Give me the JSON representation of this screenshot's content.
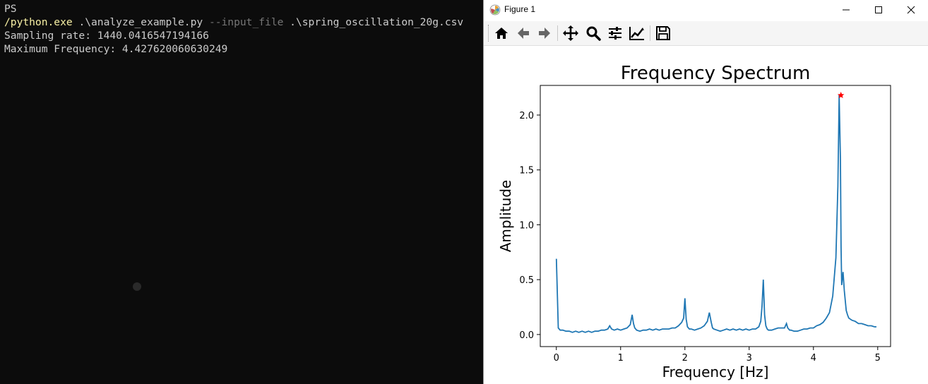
{
  "terminal": {
    "prompt": "PS",
    "command_exe": "/python.exe",
    "command_script": " .\\analyze_example.py ",
    "command_flag": "--input_file",
    "command_file": " .\\spring_oscillation_20g.csv",
    "output_lines": [
      "Sampling rate: 1440.0416547194166",
      "Maximum Frequency: 4.427620060630249"
    ]
  },
  "window": {
    "title": "Figure 1",
    "app_icon": "matplotlib-icon",
    "buttons": [
      "minimize-icon",
      "maximize-icon",
      "close-icon"
    ]
  },
  "toolbar": {
    "tools": [
      "home-icon",
      "back-arrow-icon",
      "forward-arrow-icon",
      "pan-icon",
      "zoom-icon",
      "subplots-config-icon",
      "edit-axis-icon",
      "save-icon"
    ]
  },
  "chart_data": {
    "type": "line",
    "title": "Frequency Spectrum",
    "xlabel": "Frequency [Hz]",
    "ylabel": "Amplitude",
    "xlim": [
      -0.25,
      5.2
    ],
    "ylim": [
      -0.11,
      2.27
    ],
    "xticks": [
      0,
      1,
      2,
      3,
      4,
      5
    ],
    "xtick_labels": [
      "0",
      "1",
      "2",
      "3",
      "4",
      "5"
    ],
    "yticks": [
      0,
      0.5,
      1.0,
      1.5,
      2.0
    ],
    "ytick_labels": [
      "0.0",
      "0.5",
      "1.0",
      "1.5",
      "2.0"
    ],
    "grid": false,
    "line_color": "#1f77b4",
    "marker_color": "#ff0000",
    "peak": {
      "x": 4.4276,
      "y": 2.18,
      "marker": "star"
    },
    "series": [
      {
        "x": [
          0.0,
          0.03,
          0.06,
          0.1,
          0.15,
          0.2,
          0.25,
          0.3,
          0.35,
          0.4,
          0.45,
          0.5,
          0.55,
          0.6,
          0.65,
          0.7,
          0.75,
          0.8,
          0.83,
          0.86,
          0.9,
          0.95,
          1.0,
          1.05,
          1.1,
          1.15,
          1.18,
          1.2,
          1.22,
          1.25,
          1.3,
          1.35,
          1.4,
          1.45,
          1.5,
          1.55,
          1.6,
          1.65,
          1.7,
          1.75,
          1.8,
          1.85,
          1.9,
          1.95,
          1.98,
          2.0,
          2.02,
          2.04,
          2.07,
          2.1,
          2.15,
          2.2,
          2.25,
          2.3,
          2.35,
          2.38,
          2.41,
          2.43,
          2.45,
          2.5,
          2.55,
          2.6,
          2.65,
          2.7,
          2.75,
          2.8,
          2.85,
          2.9,
          2.95,
          3.0,
          3.05,
          3.1,
          3.15,
          3.18,
          3.2,
          3.22,
          3.24,
          3.26,
          3.28,
          3.3,
          3.35,
          3.4,
          3.45,
          3.5,
          3.55,
          3.58,
          3.6,
          3.63,
          3.65,
          3.7,
          3.75,
          3.8,
          3.85,
          3.9,
          3.95,
          4.0,
          4.05,
          4.1,
          4.15,
          4.2,
          4.25,
          4.3,
          4.35,
          4.38,
          4.4,
          4.42,
          4.43,
          4.44,
          4.46,
          4.48,
          4.5,
          4.51,
          4.53,
          4.55,
          4.6,
          4.65,
          4.7,
          4.75,
          4.8,
          4.85,
          4.9,
          4.95,
          4.98
        ],
        "y": [
          0.69,
          0.06,
          0.04,
          0.04,
          0.03,
          0.03,
          0.02,
          0.03,
          0.02,
          0.03,
          0.02,
          0.03,
          0.02,
          0.03,
          0.03,
          0.04,
          0.04,
          0.05,
          0.08,
          0.05,
          0.04,
          0.05,
          0.04,
          0.05,
          0.06,
          0.09,
          0.18,
          0.1,
          0.06,
          0.04,
          0.03,
          0.04,
          0.04,
          0.05,
          0.04,
          0.05,
          0.04,
          0.05,
          0.05,
          0.05,
          0.06,
          0.06,
          0.08,
          0.11,
          0.15,
          0.33,
          0.14,
          0.07,
          0.05,
          0.05,
          0.04,
          0.05,
          0.06,
          0.08,
          0.12,
          0.2,
          0.11,
          0.06,
          0.05,
          0.04,
          0.03,
          0.04,
          0.05,
          0.04,
          0.05,
          0.04,
          0.05,
          0.04,
          0.05,
          0.04,
          0.05,
          0.05,
          0.07,
          0.12,
          0.26,
          0.5,
          0.18,
          0.08,
          0.05,
          0.04,
          0.04,
          0.05,
          0.06,
          0.06,
          0.06,
          0.1,
          0.06,
          0.04,
          0.04,
          0.03,
          0.03,
          0.04,
          0.05,
          0.05,
          0.06,
          0.06,
          0.08,
          0.09,
          0.11,
          0.15,
          0.2,
          0.35,
          0.7,
          1.35,
          2.18,
          1.6,
          0.8,
          0.45,
          0.57,
          0.4,
          0.28,
          0.22,
          0.18,
          0.15,
          0.13,
          0.12,
          0.1,
          0.1,
          0.09,
          0.08,
          0.08,
          0.07,
          0.07
        ]
      }
    ]
  }
}
